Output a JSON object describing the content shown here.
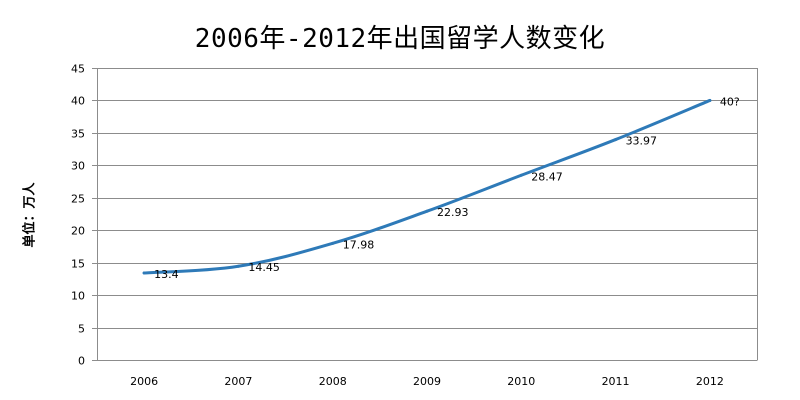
{
  "chart_data": {
    "type": "line",
    "title": "2006年-2012年出国留学人数变化",
    "ylabel": "单位：万人",
    "xlabel": "",
    "categories": [
      "2006",
      "2007",
      "2008",
      "2009",
      "2010",
      "2011",
      "2012"
    ],
    "series": [
      {
        "values": [
          13.4,
          14.45,
          17.98,
          22.93,
          28.47,
          33.97,
          40
        ],
        "data_labels": [
          "13.4",
          "14.45",
          "17.98",
          "22.93",
          "28.47",
          "33.97",
          "40?"
        ],
        "color": "#2e7ab8"
      }
    ],
    "ylim": [
      0,
      45
    ],
    "yticks": [
      "0",
      "5",
      "10",
      "15",
      "20",
      "25",
      "30",
      "35",
      "40",
      "45"
    ],
    "grid": true,
    "gridColor": "#8c8c8c"
  }
}
